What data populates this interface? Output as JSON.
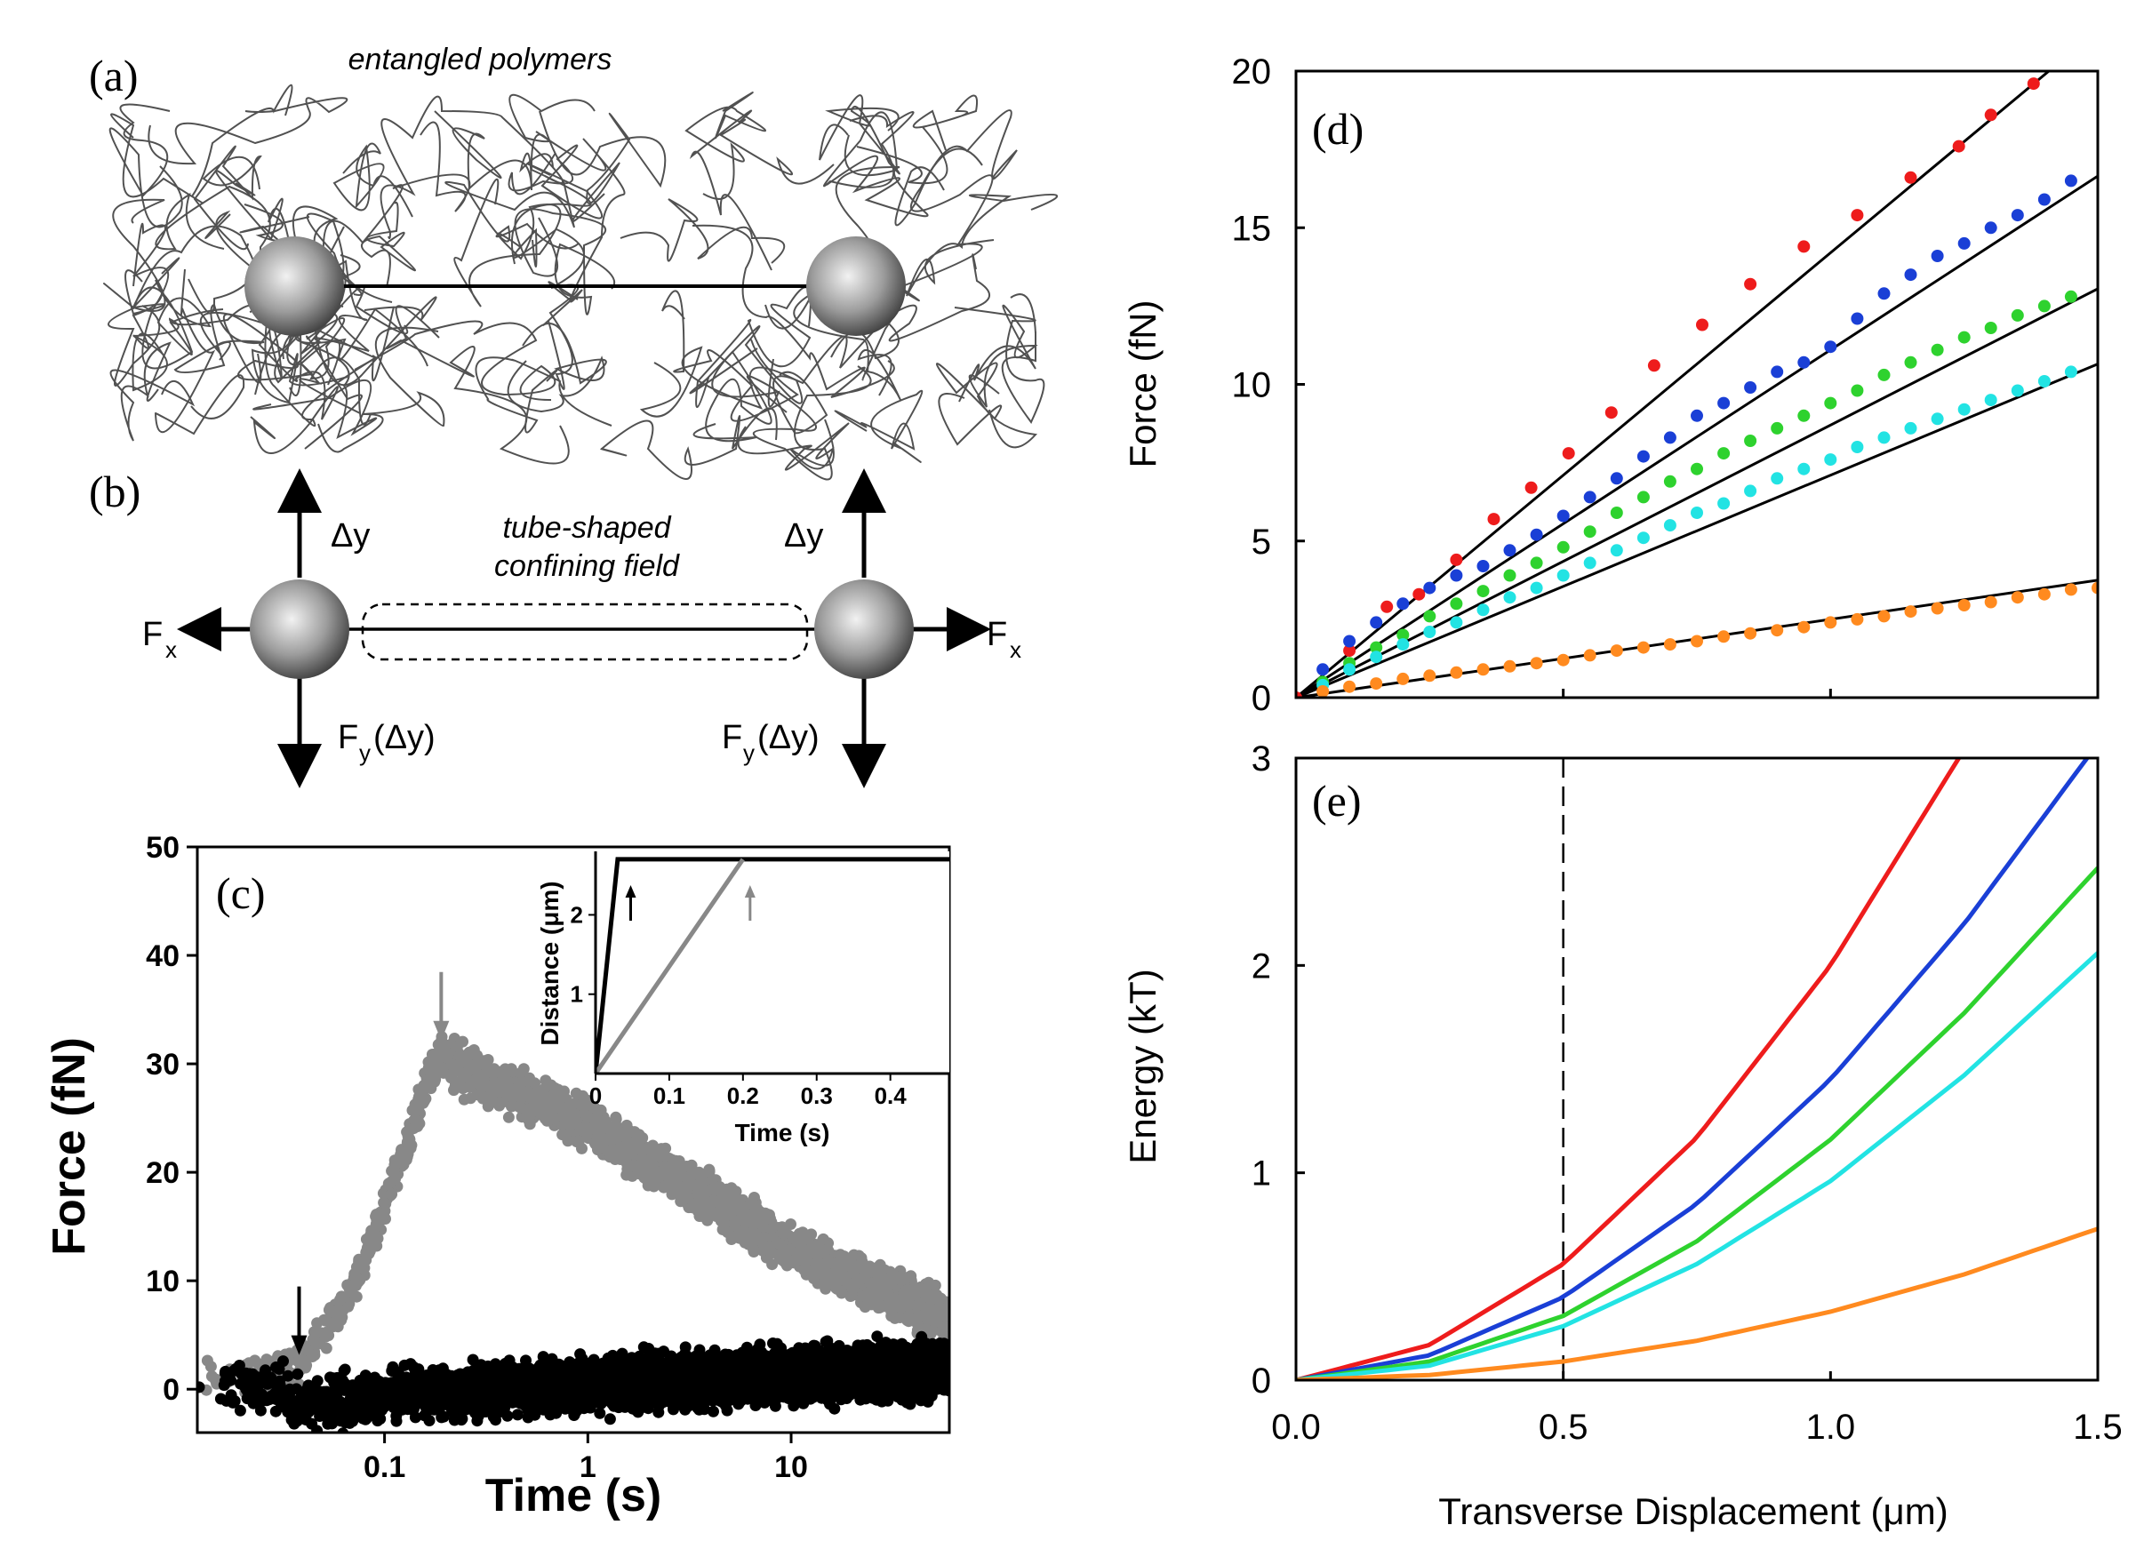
{
  "panels": {
    "a": {
      "label": "(a)",
      "title": "entangled polymers"
    },
    "b": {
      "label": "(b)",
      "tube_label_line1": "tube-shaped",
      "tube_label_line2": "confining field",
      "dy_left": "Δy",
      "dy_right": "Δy",
      "fx_base": "F",
      "fx_sub": "x",
      "fy_base": "F",
      "fy_sub": "y",
      "fy_arg": "(Δy)"
    }
  },
  "colors": {
    "red": "#ee1c1c",
    "blue": "#1a3fd6",
    "green": "#2ed22e",
    "cyan": "#22e3e3",
    "orange": "#ff8a1f",
    "gray": "#888888",
    "black": "#000000"
  },
  "chart_data": [
    {
      "id": "c",
      "label": "(c)",
      "type": "scatter",
      "xscale": "log",
      "xlabel": "Time (s)",
      "ylabel": "Force (fN)",
      "xlim": [
        0.012,
        60
      ],
      "ylim": [
        -4,
        50
      ],
      "xticks": [
        0.1,
        1,
        10
      ],
      "xtick_labels": [
        "0.1",
        "1",
        "10"
      ],
      "yticks": [
        0,
        10,
        20,
        30,
        40,
        50
      ],
      "ytick_labels": [
        "0",
        "10",
        "20",
        "30",
        "40",
        "50"
      ],
      "series": [
        {
          "name": "slow pull (gray)",
          "color": "#888888",
          "x": [
            0.013,
            0.02,
            0.03,
            0.04,
            0.06,
            0.08,
            0.1,
            0.13,
            0.16,
            0.19,
            0.22,
            0.3,
            0.5,
            1,
            2,
            5,
            10,
            20,
            40,
            60
          ],
          "y": [
            1.5,
            1.5,
            1.5,
            2.5,
            7,
            12,
            17,
            23,
            28,
            31,
            30,
            28.5,
            27,
            24.5,
            21,
            16.5,
            13,
            10.5,
            8,
            6.5
          ]
        },
        {
          "name": "fast pull (black)",
          "color": "#000000",
          "x": [
            0.013,
            0.02,
            0.03,
            0.04,
            0.06,
            0.1,
            0.2,
            0.5,
            1,
            2,
            5,
            10,
            20,
            40,
            60
          ],
          "y": [
            1,
            0.5,
            0,
            -1.5,
            -1,
            -0.5,
            -0.3,
            0,
            0.4,
            0.7,
            1,
            1.3,
            1.5,
            1.7,
            1.8
          ]
        }
      ],
      "arrows": [
        {
          "x": 0.19,
          "color": "#888888"
        },
        {
          "x": 0.038,
          "color": "#000000"
        }
      ],
      "inset": {
        "xlabel": "Time (s)",
        "ylabel": "Distance (μm)",
        "xlim": [
          0,
          0.48
        ],
        "ylim": [
          0,
          2.8
        ],
        "xticks": [
          0,
          0.1,
          0.2,
          0.3,
          0.4
        ],
        "xtick_labels": [
          "0",
          "0.1",
          "0.2",
          "0.3",
          "0.4"
        ],
        "yticks": [
          1,
          2
        ],
        "ytick_labels": [
          "1",
          "2"
        ],
        "series": [
          {
            "name": "fast",
            "color": "#000000",
            "x": [
              0,
              0.03,
              0.48
            ],
            "y": [
              0,
              2.7,
              2.7
            ]
          },
          {
            "name": "slow",
            "color": "#888888",
            "x": [
              0,
              0.2
            ],
            "y": [
              0,
              2.7
            ]
          }
        ],
        "arrows": [
          {
            "x": 0.038,
            "color": "#000000"
          },
          {
            "x": 0.2,
            "color": "#888888"
          }
        ]
      }
    },
    {
      "id": "d",
      "label": "(d)",
      "type": "scatter",
      "xlabel": "",
      "ylabel": "Force (fN)",
      "xlim": [
        0,
        1.5
      ],
      "ylim": [
        0,
        20
      ],
      "yticks": [
        0,
        5,
        10,
        15,
        20
      ],
      "ytick_labels": [
        "0",
        "5",
        "10",
        "15",
        "20"
      ],
      "x": [
        0,
        0.05,
        0.1,
        0.15,
        0.2,
        0.25,
        0.3,
        0.35,
        0.4,
        0.45,
        0.5,
        0.55,
        0.6,
        0.65,
        0.7,
        0.75,
        0.8,
        0.85,
        0.9,
        0.95,
        1.0,
        1.05,
        1.1,
        1.15,
        1.2,
        1.25,
        1.3,
        1.35,
        1.4,
        1.45,
        1.5
      ],
      "series": [
        {
          "name": "red",
          "color": "#ee1c1c",
          "slope": 14.2,
          "fit": [
            0,
            20
          ],
          "points": [
            [
              0,
              0
            ],
            [
              0.1,
              1.5
            ],
            [
              0.17,
              2.9
            ],
            [
              0.23,
              3.3
            ],
            [
              0.3,
              4.4
            ],
            [
              0.37,
              5.7
            ],
            [
              0.44,
              6.7
            ],
            [
              0.51,
              7.8
            ],
            [
              0.59,
              9.1
            ],
            [
              0.67,
              10.6
            ],
            [
              0.76,
              11.9
            ],
            [
              0.85,
              13.2
            ],
            [
              0.95,
              14.4
            ],
            [
              1.05,
              15.4
            ],
            [
              1.15,
              16.6
            ],
            [
              1.24,
              17.6
            ],
            [
              1.3,
              18.6
            ],
            [
              1.38,
              19.6
            ]
          ]
        },
        {
          "name": "blue",
          "color": "#1a3fd6",
          "slope": 11.1,
          "fit": [
            0,
            1.5
          ],
          "points": [
            [
              0.05,
              0.9
            ],
            [
              0.1,
              1.8
            ],
            [
              0.15,
              2.4
            ],
            [
              0.2,
              3.0
            ],
            [
              0.25,
              3.5
            ],
            [
              0.3,
              3.9
            ],
            [
              0.35,
              4.2
            ],
            [
              0.4,
              4.7
            ],
            [
              0.45,
              5.2
            ],
            [
              0.5,
              5.8
            ],
            [
              0.55,
              6.4
            ],
            [
              0.6,
              7.0
            ],
            [
              0.65,
              7.7
            ],
            [
              0.7,
              8.3
            ],
            [
              0.75,
              9.0
            ],
            [
              0.8,
              9.4
            ],
            [
              0.85,
              9.9
            ],
            [
              0.9,
              10.4
            ],
            [
              0.95,
              10.7
            ],
            [
              1.0,
              11.2
            ],
            [
              1.05,
              12.1
            ],
            [
              1.1,
              12.9
            ],
            [
              1.15,
              13.5
            ],
            [
              1.2,
              14.1
            ],
            [
              1.25,
              14.5
            ],
            [
              1.3,
              15.0
            ],
            [
              1.35,
              15.4
            ],
            [
              1.4,
              15.9
            ],
            [
              1.45,
              16.5
            ]
          ]
        },
        {
          "name": "green",
          "color": "#2ed22e",
          "slope": 8.7,
          "fit": [
            0,
            1.5
          ],
          "points": [
            [
              0.05,
              0.5
            ],
            [
              0.1,
              1.1
            ],
            [
              0.15,
              1.6
            ],
            [
              0.2,
              2.0
            ],
            [
              0.25,
              2.6
            ],
            [
              0.3,
              3.0
            ],
            [
              0.35,
              3.4
            ],
            [
              0.4,
              3.9
            ],
            [
              0.45,
              4.3
            ],
            [
              0.5,
              4.8
            ],
            [
              0.55,
              5.3
            ],
            [
              0.6,
              5.9
            ],
            [
              0.65,
              6.4
            ],
            [
              0.7,
              6.9
            ],
            [
              0.75,
              7.3
            ],
            [
              0.8,
              7.8
            ],
            [
              0.85,
              8.2
            ],
            [
              0.9,
              8.6
            ],
            [
              0.95,
              9.0
            ],
            [
              1.0,
              9.4
            ],
            [
              1.05,
              9.8
            ],
            [
              1.1,
              10.3
            ],
            [
              1.15,
              10.7
            ],
            [
              1.2,
              11.1
            ],
            [
              1.25,
              11.5
            ],
            [
              1.3,
              11.8
            ],
            [
              1.35,
              12.2
            ],
            [
              1.4,
              12.5
            ],
            [
              1.45,
              12.8
            ]
          ]
        },
        {
          "name": "cyan",
          "color": "#22e3e3",
          "slope": 7.1,
          "fit": [
            0,
            1.5
          ],
          "points": [
            [
              0.05,
              0.4
            ],
            [
              0.1,
              0.9
            ],
            [
              0.15,
              1.3
            ],
            [
              0.2,
              1.7
            ],
            [
              0.25,
              2.1
            ],
            [
              0.3,
              2.4
            ],
            [
              0.35,
              2.8
            ],
            [
              0.4,
              3.2
            ],
            [
              0.45,
              3.5
            ],
            [
              0.5,
              3.9
            ],
            [
              0.55,
              4.3
            ],
            [
              0.6,
              4.7
            ],
            [
              0.65,
              5.1
            ],
            [
              0.7,
              5.5
            ],
            [
              0.75,
              5.9
            ],
            [
              0.8,
              6.2
            ],
            [
              0.85,
              6.6
            ],
            [
              0.9,
              7.0
            ],
            [
              0.95,
              7.3
            ],
            [
              1.0,
              7.6
            ],
            [
              1.05,
              8.0
            ],
            [
              1.1,
              8.3
            ],
            [
              1.15,
              8.6
            ],
            [
              1.2,
              8.9
            ],
            [
              1.25,
              9.2
            ],
            [
              1.3,
              9.5
            ],
            [
              1.35,
              9.8
            ],
            [
              1.4,
              10.1
            ],
            [
              1.45,
              10.4
            ]
          ]
        },
        {
          "name": "orange",
          "color": "#ff8a1f",
          "slope": 2.5,
          "fit": [
            0,
            1.5
          ],
          "points": [
            [
              0.05,
              0.2
            ],
            [
              0.1,
              0.35
            ],
            [
              0.15,
              0.45
            ],
            [
              0.2,
              0.6
            ],
            [
              0.25,
              0.7
            ],
            [
              0.3,
              0.8
            ],
            [
              0.35,
              0.9
            ],
            [
              0.4,
              1.0
            ],
            [
              0.45,
              1.1
            ],
            [
              0.5,
              1.2
            ],
            [
              0.55,
              1.35
            ],
            [
              0.6,
              1.5
            ],
            [
              0.65,
              1.6
            ],
            [
              0.7,
              1.7
            ],
            [
              0.75,
              1.8
            ],
            [
              0.8,
              1.95
            ],
            [
              0.85,
              2.05
            ],
            [
              0.9,
              2.15
            ],
            [
              0.95,
              2.25
            ],
            [
              1.0,
              2.4
            ],
            [
              1.05,
              2.5
            ],
            [
              1.1,
              2.6
            ],
            [
              1.15,
              2.75
            ],
            [
              1.2,
              2.85
            ],
            [
              1.25,
              2.95
            ],
            [
              1.3,
              3.05
            ],
            [
              1.35,
              3.2
            ],
            [
              1.4,
              3.3
            ],
            [
              1.45,
              3.45
            ],
            [
              1.5,
              3.5
            ]
          ]
        }
      ]
    },
    {
      "id": "e",
      "label": "(e)",
      "type": "line",
      "xlabel": "Transverse Displacement (μm)",
      "ylabel": "Energy (kT)",
      "xlim": [
        0,
        1.5
      ],
      "ylim": [
        0,
        3
      ],
      "xticks": [
        0,
        0.5,
        1,
        1.5
      ],
      "xtick_labels": [
        "0.0",
        "0.5",
        "1.0",
        "1.5"
      ],
      "yticks": [
        0,
        1,
        2,
        3
      ],
      "ytick_labels": [
        "0",
        "1",
        "2",
        "3"
      ],
      "dashed_x": 0.5,
      "series": [
        {
          "name": "red",
          "color": "#ee1c1c",
          "x": [
            0,
            0.25,
            0.5,
            0.75,
            1.0,
            1.24
          ],
          "y": [
            0,
            0.17,
            0.56,
            1.17,
            2.0,
            3.0
          ]
        },
        {
          "name": "blue",
          "color": "#1a3fd6",
          "x": [
            0,
            0.25,
            0.5,
            0.75,
            1.0,
            1.25,
            1.48
          ],
          "y": [
            0,
            0.12,
            0.4,
            0.85,
            1.45,
            2.2,
            3.0
          ]
        },
        {
          "name": "green",
          "color": "#2ed22e",
          "x": [
            0,
            0.25,
            0.5,
            0.75,
            1.0,
            1.25,
            1.5
          ],
          "y": [
            0,
            0.09,
            0.31,
            0.67,
            1.16,
            1.77,
            2.47
          ]
        },
        {
          "name": "cyan",
          "color": "#22e3e3",
          "x": [
            0,
            0.25,
            0.5,
            0.75,
            1.0,
            1.25,
            1.5
          ],
          "y": [
            0,
            0.07,
            0.26,
            0.56,
            0.96,
            1.47,
            2.06
          ]
        },
        {
          "name": "orange",
          "color": "#ff8a1f",
          "x": [
            0,
            0.25,
            0.5,
            0.75,
            1.0,
            1.25,
            1.5
          ],
          "y": [
            0,
            0.025,
            0.09,
            0.19,
            0.33,
            0.51,
            0.73
          ]
        }
      ]
    }
  ]
}
